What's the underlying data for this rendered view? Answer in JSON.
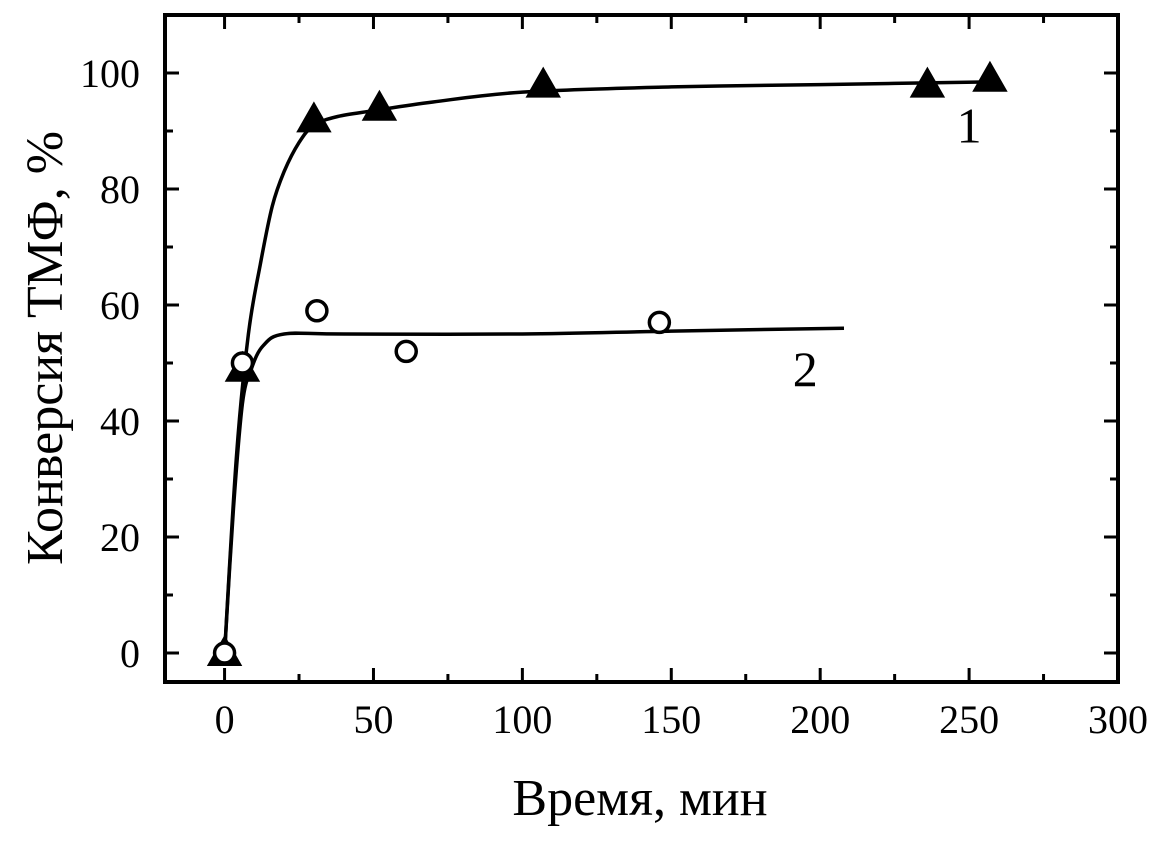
{
  "chart_data": {
    "type": "scatter",
    "title": "",
    "xlabel": "Время, мин",
    "ylabel": "Конверсия ТМФ, %",
    "xlim": [
      -20,
      300
    ],
    "ylim": [
      -5,
      110
    ],
    "x_ticks": [
      0,
      50,
      100,
      150,
      200,
      250,
      300
    ],
    "x_tick_labels": [
      "0",
      "50",
      "100",
      "150",
      "200",
      "250",
      "300"
    ],
    "x_minor_ticks": [
      25,
      75,
      125,
      175,
      225,
      275
    ],
    "y_ticks": [
      0,
      20,
      40,
      60,
      80,
      100
    ],
    "y_tick_labels": [
      "0",
      "20",
      "40",
      "60",
      "80",
      "100"
    ],
    "y_minor_ticks": [
      10,
      30,
      50,
      70,
      90
    ],
    "grid": false,
    "legend": "none",
    "series": [
      {
        "name": "1",
        "marker": "filled-triangle",
        "points": [
          {
            "x": 0,
            "y": 0
          },
          {
            "x": 6,
            "y": 49
          },
          {
            "x": 30,
            "y": 92
          },
          {
            "x": 52,
            "y": 94
          },
          {
            "x": 107,
            "y": 98
          },
          {
            "x": 236,
            "y": 98
          },
          {
            "x": 257,
            "y": 99
          }
        ],
        "fit_curve": [
          {
            "x": 0,
            "y": 0
          },
          {
            "x": 4,
            "y": 34
          },
          {
            "x": 8,
            "y": 55
          },
          {
            "x": 12,
            "y": 67
          },
          {
            "x": 16,
            "y": 77
          },
          {
            "x": 20,
            "y": 83
          },
          {
            "x": 25,
            "y": 88
          },
          {
            "x": 30,
            "y": 91
          },
          {
            "x": 38,
            "y": 92.5
          },
          {
            "x": 50,
            "y": 93.5
          },
          {
            "x": 70,
            "y": 95
          },
          {
            "x": 100,
            "y": 96.7
          },
          {
            "x": 150,
            "y": 97.6
          },
          {
            "x": 200,
            "y": 98
          },
          {
            "x": 260,
            "y": 98.5
          }
        ],
        "label_at": {
          "x": 250,
          "y": 88
        }
      },
      {
        "name": "2",
        "marker": "open-circle",
        "points": [
          {
            "x": 0,
            "y": 0
          },
          {
            "x": 6,
            "y": 50
          },
          {
            "x": 31,
            "y": 59
          },
          {
            "x": 61,
            "y": 52
          },
          {
            "x": 146,
            "y": 57
          }
        ],
        "fit_curve": [
          {
            "x": 0,
            "y": 0
          },
          {
            "x": 3,
            "y": 25
          },
          {
            "x": 6,
            "y": 43
          },
          {
            "x": 9,
            "y": 49
          },
          {
            "x": 13,
            "y": 53
          },
          {
            "x": 20,
            "y": 55
          },
          {
            "x": 40,
            "y": 55
          },
          {
            "x": 100,
            "y": 55
          },
          {
            "x": 150,
            "y": 55.5
          },
          {
            "x": 208,
            "y": 56
          }
        ],
        "label_at": {
          "x": 195,
          "y": 46
        }
      }
    ]
  }
}
